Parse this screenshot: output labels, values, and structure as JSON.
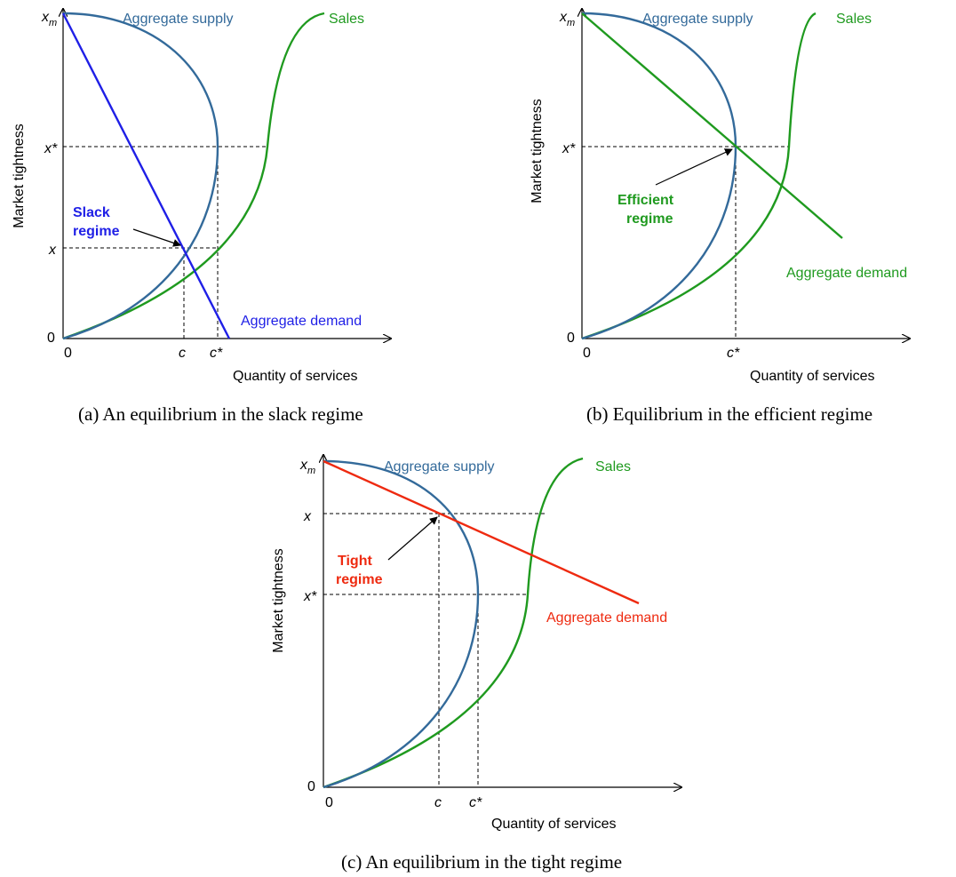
{
  "panels": [
    {
      "id": "a",
      "caption": "(a)  An equilibrium in the slack regime",
      "ylabel": "Market tightness",
      "xlabel": "Quantity of services",
      "y_ticks": [
        "x_m",
        "x*",
        "x",
        "0"
      ],
      "x_ticks": [
        "0",
        "c",
        "c*"
      ],
      "supply_label": "Aggregate supply",
      "sales_label": "Sales",
      "demand_label": "Aggregate demand",
      "regime_label": [
        "Slack",
        "regime"
      ],
      "demand_color": "#1f1fe6"
    },
    {
      "id": "b",
      "caption": "(b)  Equilibrium in the efficient regime",
      "ylabel": "Market tightness",
      "xlabel": "Quantity of services",
      "y_ticks": [
        "x_m",
        "x*",
        "0"
      ],
      "x_ticks": [
        "0",
        "c*"
      ],
      "supply_label": "Aggregate supply",
      "sales_label": "Sales",
      "demand_label": "Aggregate demand",
      "regime_label": [
        "Efficient",
        "regime"
      ],
      "demand_color": "#1f9a1f"
    },
    {
      "id": "c",
      "caption": "(c)  An equilibrium in the tight regime",
      "ylabel": "Market tightness",
      "xlabel": "Quantity of services",
      "y_ticks": [
        "x_m",
        "x",
        "x*",
        "0"
      ],
      "x_ticks": [
        "0",
        "c",
        "c*"
      ],
      "supply_label": "Aggregate supply",
      "sales_label": "Sales",
      "demand_label": "Aggregate demand",
      "regime_label": [
        "Tight",
        "regime"
      ],
      "demand_color": "#ee2a10"
    }
  ],
  "colors": {
    "supply": "#336a9a",
    "sales": "#1f9a1f",
    "axis": "#000000"
  }
}
